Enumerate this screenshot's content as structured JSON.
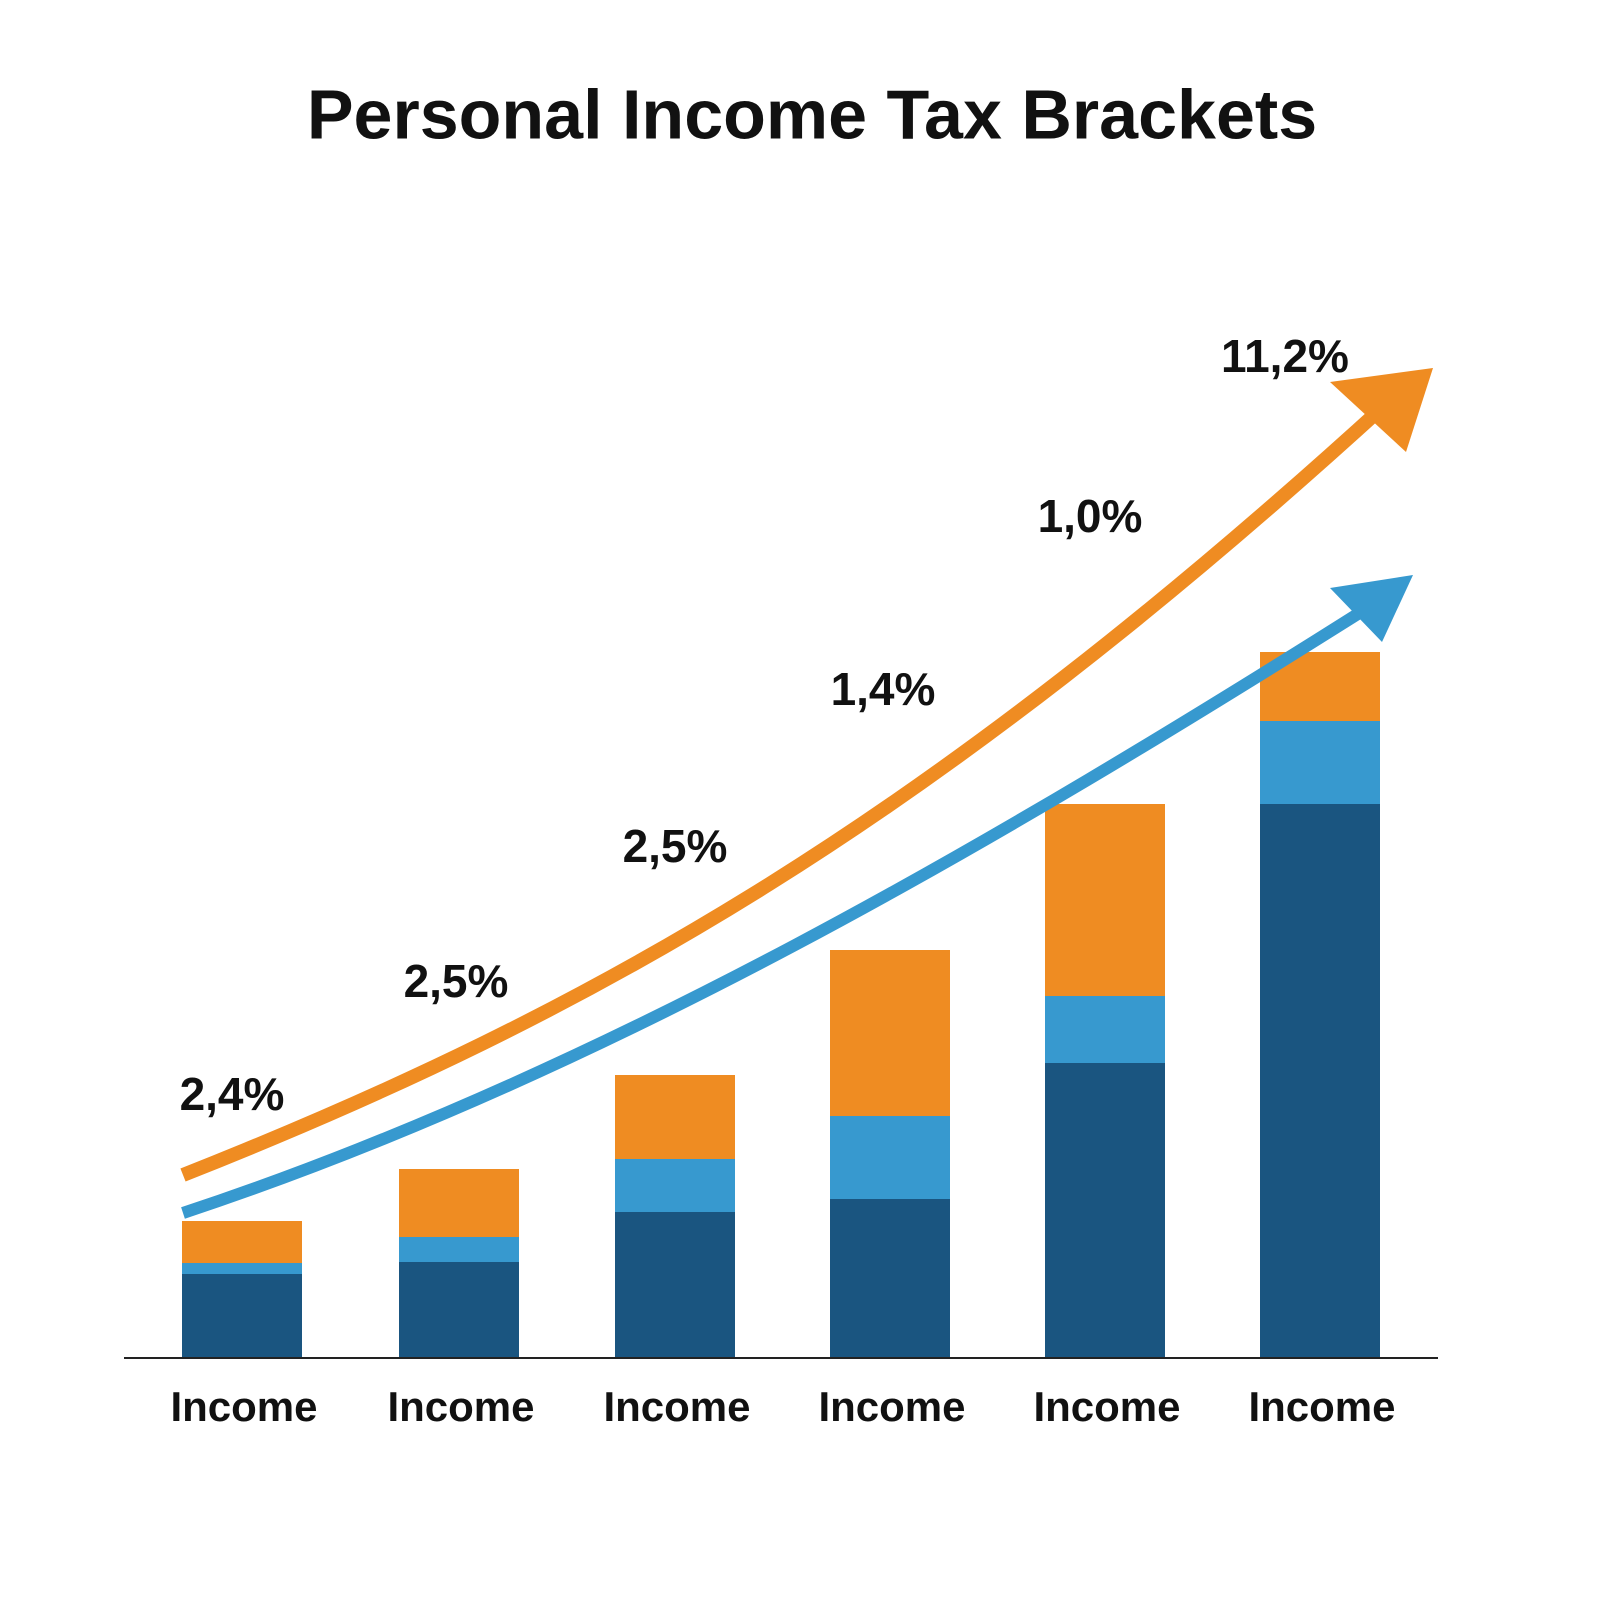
{
  "chart_data": {
    "type": "stacked-bar",
    "title": "Personal Income Tax Brackets",
    "categories": [
      "Income",
      "Income",
      "Income",
      "Income",
      "Income",
      "Income"
    ],
    "series": [
      {
        "color": "#1a5580",
        "values": [
          84,
          96,
          146,
          159,
          295,
          554
        ]
      },
      {
        "color": "#3799cf",
        "values": [
          11,
          25,
          53,
          83,
          67,
          83
        ]
      },
      {
        "color": "#ef8c22",
        "values": [
          42,
          68,
          84,
          166,
          192,
          69
        ]
      }
    ],
    "ylim": [
      0,
      706
    ],
    "annotations": [
      "2,4%",
      "2,5%",
      "2,5%",
      "1,4%",
      "1,0%",
      "11,2%"
    ]
  }
}
